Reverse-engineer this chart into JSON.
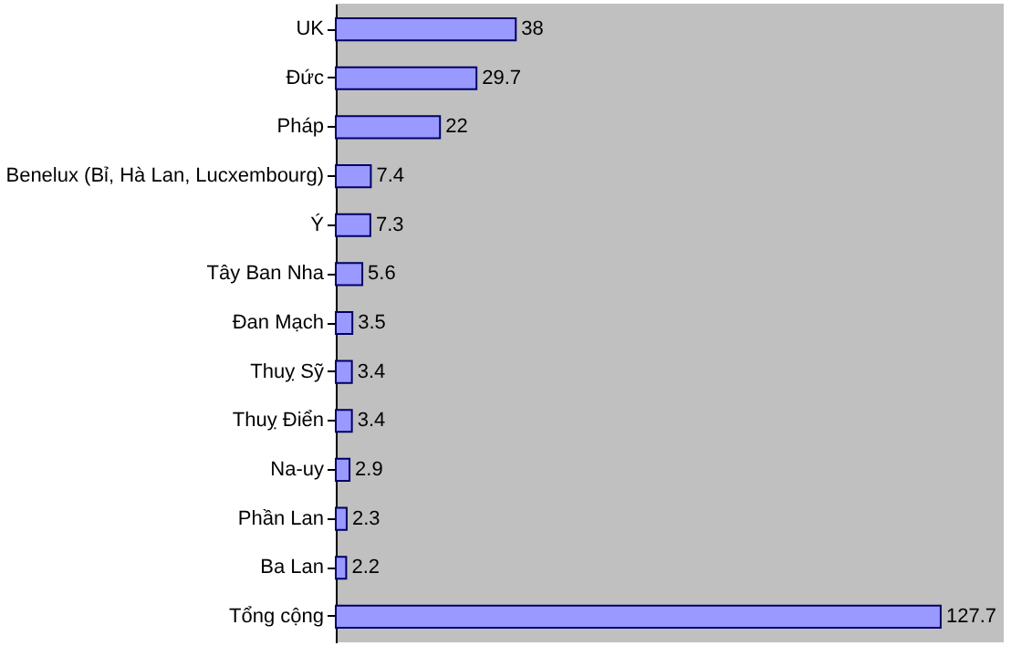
{
  "chart_data": {
    "type": "bar",
    "orientation": "horizontal",
    "categories": [
      "UK",
      "Đức",
      "Pháp",
      "Benelux (Bỉ, Hà Lan, Lucxembourg)",
      "Ý",
      "Tây Ban Nha",
      "Đan Mạch",
      "Thuỵ Sỹ",
      "Thuỵ Điển",
      "Na-uy",
      "Phần Lan",
      "Ba Lan",
      "Tổng cộng"
    ],
    "values": [
      38,
      29.7,
      22,
      7.4,
      7.3,
      5.6,
      3.5,
      3.4,
      3.4,
      2.9,
      2.3,
      2.2,
      127.7
    ],
    "color": "#9999ff",
    "xlim": [
      0,
      141
    ],
    "tick_labels": "y",
    "data_labels": true
  }
}
